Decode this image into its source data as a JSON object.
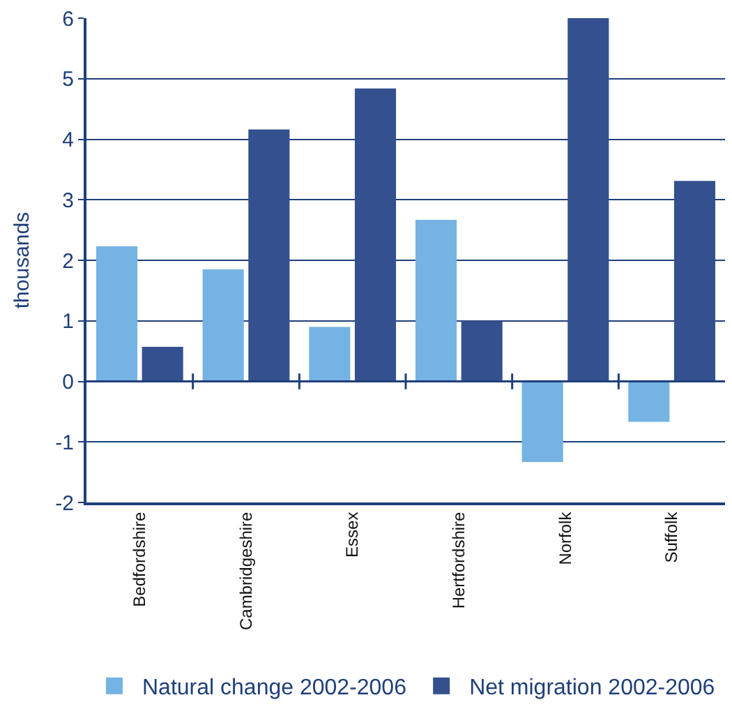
{
  "chart_data": {
    "type": "bar",
    "ylabel": "thousands",
    "categories": [
      "Bedfordshire",
      "Cambridgeshire",
      "Essex",
      "Hertfordshire",
      "Norfolk",
      "Suffolk"
    ],
    "series": [
      {
        "name": "Natural change 2002-2006",
        "color": "#74b3e3",
        "values": [
          2.23,
          1.85,
          0.9,
          2.67,
          -1.33,
          -0.67
        ]
      },
      {
        "name": "Net migration 2002-2006",
        "color": "#34508e",
        "values": [
          0.57,
          4.16,
          4.84,
          1.0,
          6.0,
          3.31
        ]
      }
    ],
    "ylim": [
      -2,
      6
    ],
    "yticks": [
      -2,
      -1,
      0,
      1,
      2,
      3,
      4,
      5,
      6
    ],
    "grid": "y",
    "legend": "bottom",
    "ref_lines": [
      {
        "axis": "y",
        "value": 0,
        "color": "#1f3f7a"
      }
    ]
  }
}
